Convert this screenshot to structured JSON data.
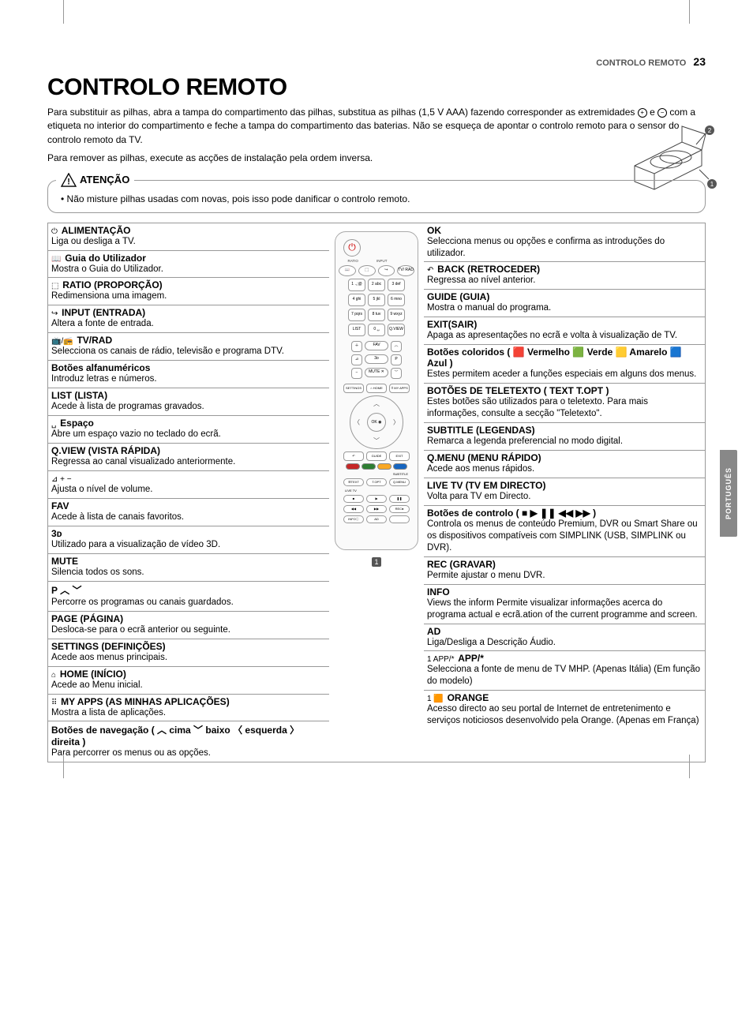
{
  "page": {
    "section": "CONTROLO REMOTO",
    "number": "23"
  },
  "title": "CONTROLO REMOTO",
  "intro1": "Para substituir as pilhas, abra a tampa do compartimento das pilhas, substitua as pilhas (1,5 V AAA) fazendo corresponder as extremidades ",
  "intro2": " e ",
  "intro3": " com a etiqueta no interior do compartimento e feche a tampa do compartimento das baterias. Não se esqueça de apontar o controlo remoto para o sensor do controlo remoto da TV.",
  "intro_after": "Para remover as pilhas, execute as acções de instalação pela ordem inversa.",
  "attention": {
    "label": "ATENÇÃO",
    "body": "• Não misture pilhas usadas com novas, pois isso pode danificar o controlo remoto."
  },
  "sidebar_tab": "PORTUGUÊS",
  "battery": {
    "n1": "1",
    "n2": "2"
  },
  "left_items": [
    {
      "icon": "⏻",
      "title": "ALIMENTAÇÃO",
      "desc": "Liga ou desliga a TV."
    },
    {
      "icon": "📖",
      "title": "Guia do Utilizador",
      "desc": "Mostra o Guia do Utilizador."
    },
    {
      "icon": "⬚",
      "title": "RATIO (PROPORÇÃO)",
      "desc": "Redimensiona uma imagem."
    },
    {
      "icon": "↪",
      "title": "INPUT (ENTRADA)",
      "desc": "Altera a fonte de entrada."
    },
    {
      "icon": "📺/📻",
      "title": "TV/RAD",
      "desc": "Selecciona os canais de rádio, televisão e programa DTV."
    },
    {
      "icon": "",
      "title": "Botões alfanuméricos",
      "desc": "Introduz letras e números."
    },
    {
      "icon": "",
      "title": "LIST (LISTA)",
      "desc": "Acede à lista de programas gravados."
    },
    {
      "icon": "␣",
      "title": "Espaço",
      "desc": "Abre um espaço vazio no teclado do ecrã."
    },
    {
      "icon": "",
      "title": "Q.VIEW (VISTA RÁPIDA)",
      "desc": "Regressa ao canal visualizado anteriormente."
    },
    {
      "icon": "⊿ + −",
      "title": "",
      "desc": "Ajusta o nível de volume."
    },
    {
      "icon": "",
      "title": "FAV",
      "desc": "Acede à lista de canais favoritos."
    },
    {
      "icon": "",
      "title": "3ᴅ",
      "desc": "Utilizado para a visualização de vídeo 3D."
    },
    {
      "icon": "",
      "title": "MUTE",
      "desc": "Silencia todos os sons."
    },
    {
      "icon": "",
      "title": "P ︿ ﹀",
      "desc": "Percorre os programas ou canais guardados."
    },
    {
      "icon": "",
      "title": "PAGE (PÁGINA)",
      "desc": "Desloca-se para o ecrã anterior ou seguinte."
    },
    {
      "icon": "",
      "title": "SETTINGS (DEFINIÇÕES)",
      "desc": "Acede aos menus principais."
    },
    {
      "icon": "⌂",
      "title": "HOME (INÍCIO)",
      "desc": "Acede ao Menu inicial."
    },
    {
      "icon": "⠿",
      "title": "MY APPS (AS MINHAS APLICAÇÕES)",
      "desc": "Mostra a lista de aplicações."
    },
    {
      "icon": "",
      "title": "Botões de navegação ( ︿ cima ﹀ baixo 〈 esquerda 〉 direita )",
      "desc": "Para percorrer os menus ou as opções."
    }
  ],
  "right_items": [
    {
      "icon": "",
      "title": "OK",
      "desc": "Selecciona menus ou opções e confirma as introduções do utilizador."
    },
    {
      "icon": "↶",
      "title": "BACK (RETROCEDER)",
      "desc": "Regressa ao nível anterior."
    },
    {
      "icon": "",
      "title": "GUIDE (GUIA)",
      "desc": "Mostra o manual do programa."
    },
    {
      "icon": "",
      "title": "EXIT(SAIR)",
      "desc": "Apaga as apresentações no ecrã e volta à visualização de TV."
    },
    {
      "icon": "",
      "title": "Botões coloridos ( 🟥 Vermelho 🟩 Verde 🟨 Amarelo 🟦 Azul )",
      "desc": "Estes permitem aceder a funções especiais em alguns dos menus."
    },
    {
      "icon": "",
      "title": "BOTÕES DE TELETEXTO ( TEXT T.OPT )",
      "desc": "Estes botões são utilizados para o teletexto. Para mais informações, consulte a secção \"Teletexto\"."
    },
    {
      "icon": "",
      "title": "SUBTITLE (LEGENDAS)",
      "desc": "Remarca a legenda preferencial no modo digital."
    },
    {
      "icon": "",
      "title": "Q.MENU (MENU RÁPIDO)",
      "desc": "Acede aos menus rápidos."
    },
    {
      "icon": "",
      "title": "LIVE TV (TV EM DIRECTO)",
      "desc": "Volta para TV em Directo."
    },
    {
      "icon": "",
      "title": "Botões de controlo ( ■ ▶ ❚❚ ◀◀ ▶▶ )",
      "desc": "Controla os menus de conteúdo Premium, DVR ou Smart Share ou os dispositivos compatíveis com SIMPLINK (USB, SIMPLINK ou DVR)."
    },
    {
      "icon": "",
      "title": "REC (GRAVAR)",
      "desc": "Permite ajustar o menu DVR."
    },
    {
      "icon": "",
      "title": "INFO",
      "desc": "Views the inform Permite visualizar informações acerca do programa actual e ecrã.ation of the current programme and screen."
    },
    {
      "icon": "",
      "title": "AD",
      "desc": "Liga/Desliga a Descrição Áudio."
    },
    {
      "icon": "1 APP/*",
      "title": "APP/*",
      "desc": "Selecciona a fonte de menu de TV MHP. (Apenas Itália) (Em função do modelo)"
    },
    {
      "icon": "1 🟧",
      "title": "ORANGE",
      "desc": "Acesso directo ao seu portal de Internet de entretenimento e serviços noticiosos desenvolvido pela Orange. (Apenas em França)"
    }
  ],
  "remote": {
    "labels_top": [
      "RATIO",
      "INPUT",
      ""
    ],
    "row1": [
      "📖",
      "⬚",
      "↪",
      "TV/\nRAD"
    ],
    "numpad": [
      [
        "1 .,;@",
        "2 abc",
        "3 def"
      ],
      [
        "4 ghi",
        "5 jkl",
        "6 mno"
      ],
      [
        "7 pqrs",
        "8 tuv",
        "9 wxyz"
      ],
      [
        "LIST",
        "0 ␣",
        "Q.VIEW"
      ]
    ],
    "mid": {
      "plus": "＋",
      "fav": "FAV",
      "up": "︿",
      "vol": "⊿",
      "threeD": "3ᴅ",
      "p": "P",
      "minus": "−",
      "mute": "MUTE ✕",
      "down": "﹀"
    },
    "row_sh": [
      "SETTINGS",
      "⌂\nHOME",
      "⠿\nMY APPS"
    ],
    "dpad_ok": "OK\n◉",
    "row_bge": [
      "↶",
      "GUIDE",
      "EXIT"
    ],
    "color_hexes": [
      "#c62828",
      "#2e7d32",
      "#f9a825",
      "#1565c0"
    ],
    "row_tt": [
      "☰TEXT",
      "T.OPT",
      "Q.MENU"
    ],
    "subtitle_label": "SUBTITLE",
    "livetv_label": "LIVE TV",
    "row_play": [
      "■",
      "▶",
      "❚❚"
    ],
    "row_rec": [
      "◀◀",
      "▶▶",
      "REC●"
    ],
    "row_info": [
      "INFOⓘ",
      "AD",
      ""
    ],
    "marker": "1"
  }
}
